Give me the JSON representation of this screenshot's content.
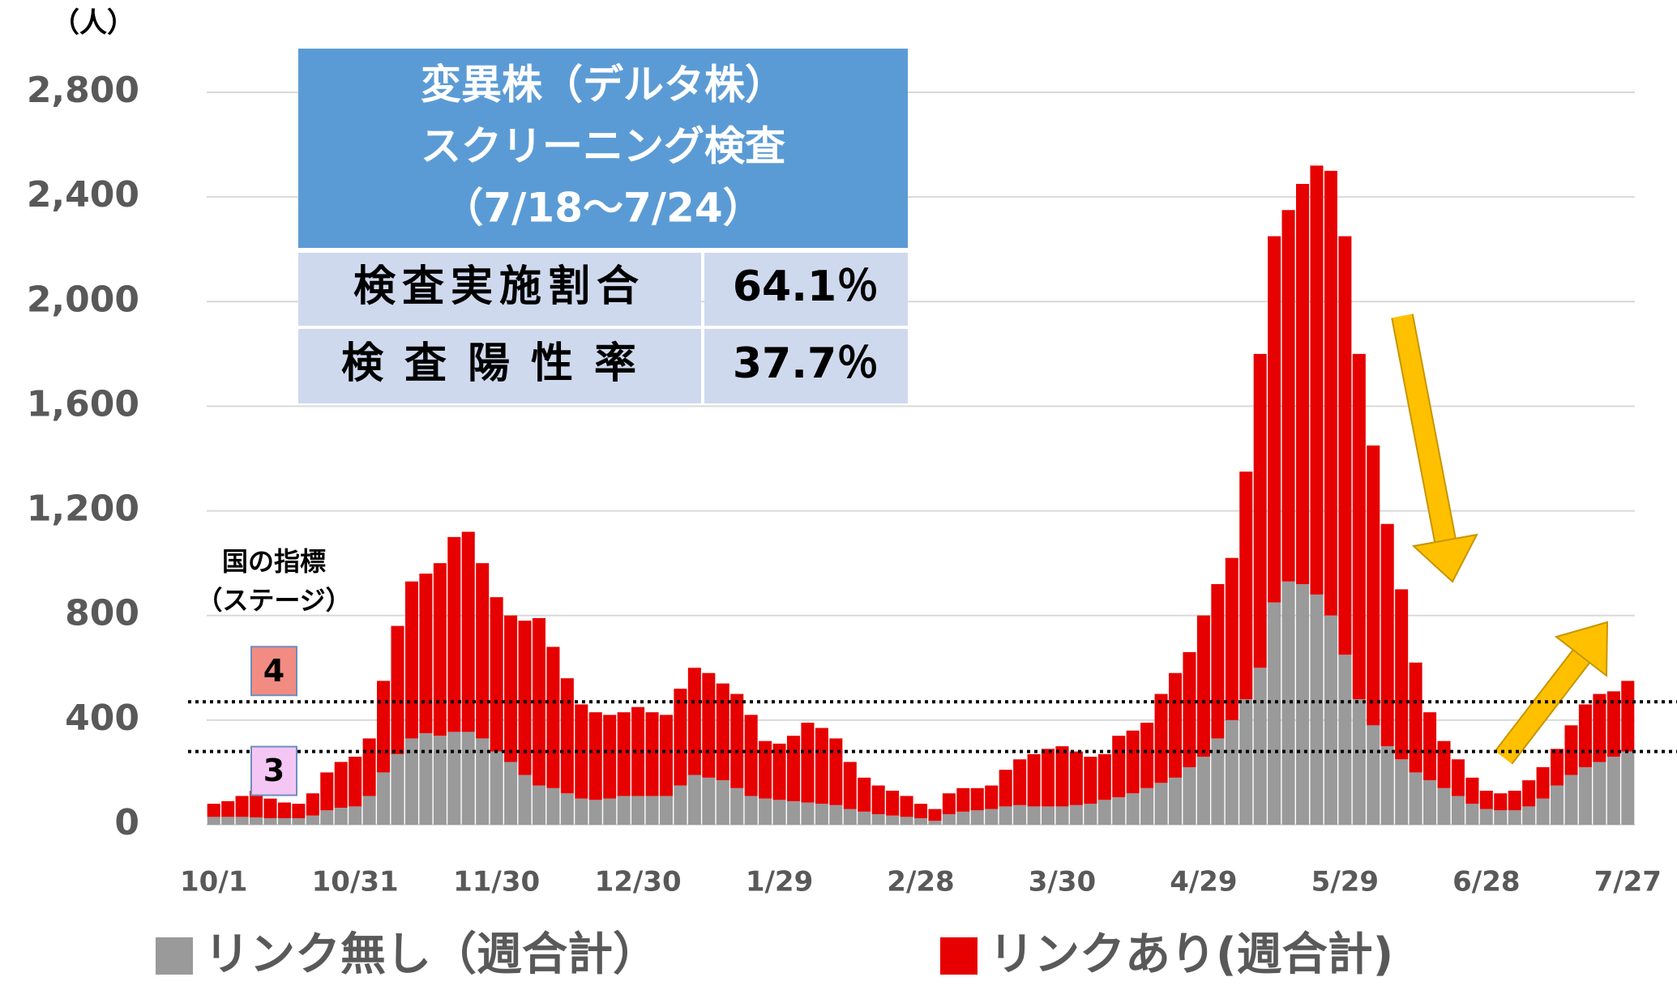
{
  "chart_data": {
    "type": "stacked_bar",
    "y_unit": "（人）",
    "categories": [
      "10/1",
      null,
      null,
      null,
      null,
      null,
      null,
      null,
      null,
      null,
      "10/31",
      null,
      null,
      null,
      null,
      null,
      null,
      null,
      null,
      null,
      "11/30",
      null,
      null,
      null,
      null,
      null,
      null,
      null,
      null,
      null,
      "12/30",
      null,
      null,
      null,
      null,
      null,
      null,
      null,
      null,
      null,
      "1/29",
      null,
      null,
      null,
      null,
      null,
      null,
      null,
      null,
      null,
      "2/28",
      null,
      null,
      null,
      null,
      null,
      null,
      null,
      null,
      null,
      "3/30",
      null,
      null,
      null,
      null,
      null,
      null,
      null,
      null,
      null,
      "4/29",
      null,
      null,
      null,
      null,
      null,
      null,
      null,
      null,
      null,
      "5/29",
      null,
      null,
      null,
      null,
      null,
      null,
      null,
      null,
      null,
      "6/28",
      null,
      null,
      null,
      null,
      null,
      null,
      null,
      null,
      null,
      "7/27"
    ],
    "series": [
      {
        "name": "リンク無し（週合計）",
        "color": "#9a9a9a",
        "values": [
          30,
          30,
          30,
          28,
          25,
          25,
          25,
          35,
          55,
          65,
          70,
          110,
          200,
          270,
          330,
          350,
          340,
          355,
          355,
          330,
          280,
          240,
          190,
          150,
          140,
          120,
          100,
          95,
          100,
          110,
          110,
          110,
          110,
          150,
          190,
          180,
          170,
          140,
          110,
          100,
          95,
          90,
          85,
          80,
          75,
          60,
          50,
          40,
          35,
          30,
          25,
          15,
          40,
          50,
          55,
          60,
          70,
          75,
          70,
          70,
          70,
          75,
          80,
          95,
          105,
          120,
          140,
          160,
          180,
          220,
          260,
          330,
          400,
          480,
          600,
          850,
          930,
          920,
          880,
          800,
          650,
          480,
          380,
          300,
          250,
          200,
          170,
          140,
          110,
          80,
          60,
          55,
          55,
          70,
          100,
          150,
          190,
          220,
          240,
          260,
          280
        ]
      },
      {
        "name": "リンクあり(週合計)",
        "color": "#e60000",
        "values": [
          50,
          60,
          80,
          102,
          75,
          60,
          55,
          85,
          145,
          175,
          190,
          220,
          350,
          490,
          600,
          610,
          660,
          745,
          765,
          670,
          590,
          560,
          590,
          640,
          540,
          440,
          360,
          335,
          320,
          320,
          340,
          320,
          310,
          370,
          410,
          400,
          370,
          360,
          310,
          220,
          215,
          250,
          305,
          290,
          255,
          180,
          130,
          110,
          95,
          80,
          55,
          45,
          80,
          90,
          85,
          90,
          140,
          175,
          200,
          220,
          230,
          205,
          180,
          175,
          235,
          240,
          250,
          340,
          400,
          440,
          540,
          590,
          620,
          870,
          1200,
          1400,
          1420,
          1530,
          1640,
          1700,
          1600,
          1320,
          1070,
          850,
          650,
          420,
          260,
          180,
          140,
          100,
          70,
          65,
          75,
          100,
          120,
          140,
          190,
          240,
          260,
          250,
          270
        ]
      }
    ],
    "ylim": [
      0,
      2800
    ],
    "yticks": [
      0,
      {
        "value": 400,
        "label": "400"
      },
      {
        "value": 800,
        "label": "800"
      },
      {
        "value": 1200,
        "label": "1,200"
      },
      {
        "value": 1600,
        "label": "1,600"
      },
      {
        "value": 2000,
        "label": "2,000"
      },
      {
        "value": 2400,
        "label": "2,400"
      },
      {
        "value": 2800,
        "label": "2,800"
      }
    ],
    "grid": true,
    "stage_title": [
      "国の指標",
      "（ステージ）"
    ],
    "stage_lines": [
      {
        "label": "4",
        "value": 470,
        "color": "#f28b82"
      },
      {
        "label": "3",
        "value": 280,
        "color": "#f4c6f4"
      }
    ],
    "info_table": {
      "title": [
        "変異株（デルタ株）",
        "スクリーニング検査",
        "（7/18～7/24）"
      ],
      "rows": [
        [
          "検査実施割合",
          "64.1％"
        ],
        [
          "検査陽性率",
          "37.7％"
        ]
      ]
    }
  }
}
